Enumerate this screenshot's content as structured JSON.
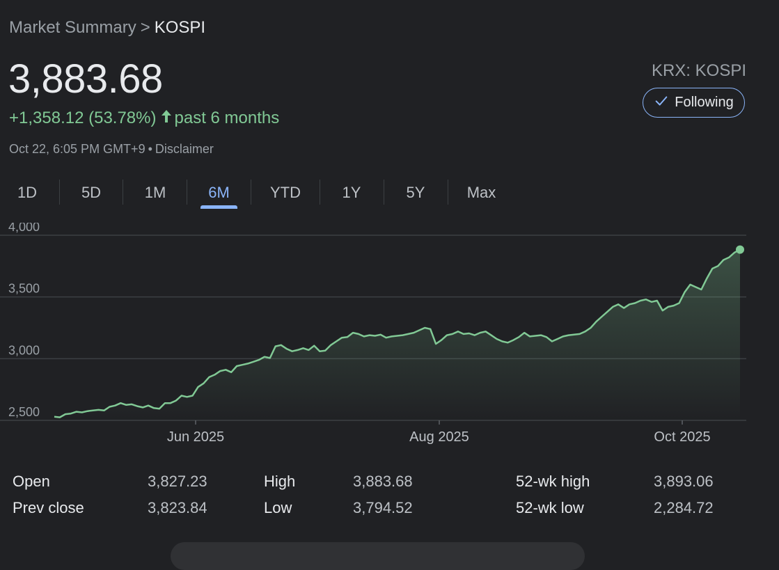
{
  "breadcrumb": {
    "parent": "Market Summary",
    "separator": ">",
    "current": "KOSPI"
  },
  "quote": {
    "price": "3,883.68",
    "change": "+1,358.12 (53.78%)",
    "period": "past 6 months",
    "timestamp": "Oct 22, 6:05 PM GMT+9",
    "disclaimer": "Disclaimer",
    "exchange": "KRX: KOSPI",
    "follow_label": "Following"
  },
  "tabs": [
    {
      "label": "1D",
      "active": false
    },
    {
      "label": "5D",
      "active": false
    },
    {
      "label": "1M",
      "active": false
    },
    {
      "label": "6M",
      "active": true
    },
    {
      "label": "YTD",
      "active": false
    },
    {
      "label": "1Y",
      "active": false
    },
    {
      "label": "5Y",
      "active": false
    },
    {
      "label": "Max",
      "active": false
    }
  ],
  "stats": {
    "open_label": "Open",
    "open_value": "3,827.23",
    "prev_close_label": "Prev close",
    "prev_close_value": "3,823.84",
    "high_label": "High",
    "high_value": "3,883.68",
    "low_label": "Low",
    "low_value": "3,794.52",
    "wk52_high_label": "52-wk high",
    "wk52_high_value": "3,893.06",
    "wk52_low_label": "52-wk low",
    "wk52_low_value": "2,284.72"
  },
  "colors": {
    "line": "#81c995",
    "accent": "#8ab4f8",
    "background": "#202124",
    "grid": "#3c4043"
  },
  "chart_data": {
    "type": "area",
    "x_labels": [
      "Jun 2025",
      "Aug 2025",
      "Oct 2025"
    ],
    "y_ticks": [
      2500,
      3000,
      3500,
      4000
    ],
    "y_tick_labels": [
      "2,500",
      "3,000",
      "3,500",
      "4,000"
    ],
    "ylim": [
      2500,
      4000
    ],
    "grid": true,
    "series": [
      {
        "values": [
          2530,
          2525,
          2550,
          2555,
          2570,
          2565,
          2575,
          2580,
          2585,
          2580,
          2610,
          2620,
          2640,
          2625,
          2630,
          2615,
          2605,
          2620,
          2600,
          2595,
          2640,
          2640,
          2660,
          2700,
          2690,
          2700,
          2770,
          2800,
          2850,
          2870,
          2900,
          2910,
          2890,
          2940,
          2950,
          2960,
          2975,
          2990,
          3015,
          3005,
          3100,
          3110,
          3080,
          3060,
          3070,
          3085,
          3070,
          3105,
          3060,
          3065,
          3110,
          3140,
          3170,
          3175,
          3210,
          3200,
          3180,
          3190,
          3185,
          3195,
          3170,
          3180,
          3185,
          3190,
          3200,
          3210,
          3230,
          3250,
          3240,
          3120,
          3150,
          3190,
          3200,
          3220,
          3200,
          3205,
          3190,
          3210,
          3220,
          3190,
          3160,
          3140,
          3130,
          3150,
          3175,
          3210,
          3180,
          3185,
          3190,
          3175,
          3140,
          3160,
          3180,
          3190,
          3195,
          3200,
          3220,
          3250,
          3300,
          3340,
          3380,
          3420,
          3440,
          3410,
          3440,
          3450,
          3470,
          3480,
          3460,
          3470,
          3390,
          3420,
          3430,
          3450,
          3540,
          3600,
          3580,
          3560,
          3650,
          3730,
          3750,
          3800,
          3820,
          3860,
          3883.68
        ]
      }
    ],
    "last_value": 3883.68
  }
}
